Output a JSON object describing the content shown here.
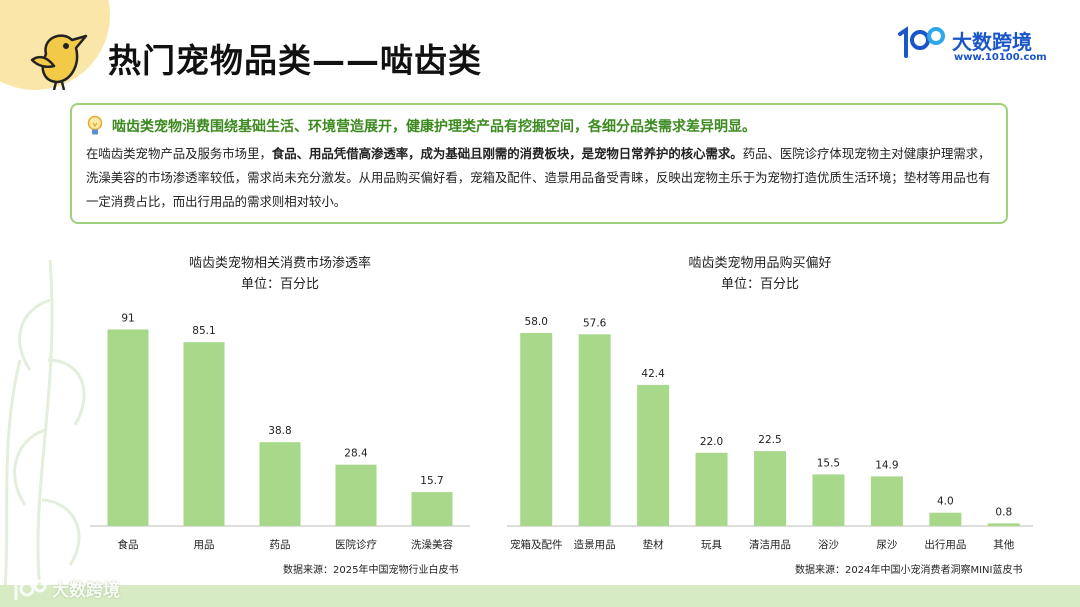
{
  "header": {
    "title": "热门宠物品类——啮齿类",
    "logo_name": "大数跨境",
    "logo_url": "www.10100.com"
  },
  "summary": {
    "headline": "啮齿类宠物消费围绕基础生活、环境营造展开，健康护理类产品有挖掘空间，各细分品类需求差异明显。",
    "p1": "在啮齿类宠物产品及服务市场里，",
    "p2": "食品、用品凭借高渗透率，成为基础且刚需的消费板块，是宠物日常养护的核心需求。",
    "p3": "药品、医院诊疗体现宠物主对健康护理需求，洗澡美容的市场渗透率较低，需求尚未充分激发。从用品购买偏好看，宠箱及配件、造景用品备受青睐，反映出宠物主乐于为宠物打造优质生活环境；垫材等用品也有一定消费占比，而出行用品的需求则相对较小。"
  },
  "footer": {
    "logo_name": "大数跨境"
  },
  "colors": {
    "bar": "#a8d88a",
    "accent": "#3c8a1f",
    "border": "#9fd17a",
    "logo": "#1a56c9"
  },
  "chart_data": [
    {
      "type": "bar",
      "title": "啮齿类宠物相关消费市场渗透率",
      "unit": "单位：百分比",
      "categories": [
        "食品",
        "用品",
        "药品",
        "医院诊疗",
        "洗澡美容"
      ],
      "values": [
        91,
        85.1,
        38.8,
        28.4,
        15.7
      ],
      "labels": [
        "91",
        "85.1",
        "38.8",
        "28.4",
        "15.7"
      ],
      "ylim": [
        0,
        100
      ],
      "grid": false,
      "source": "数据来源：2025年中国宠物行业白皮书"
    },
    {
      "type": "bar",
      "title": "啮齿类宠物用品购买偏好",
      "unit": "单位：百分比",
      "categories": [
        "宠箱及配件",
        "造景用品",
        "垫材",
        "玩具",
        "清洁用品",
        "浴沙",
        "尿沙",
        "出行用品",
        "其他"
      ],
      "values": [
        58.0,
        57.6,
        42.4,
        22.0,
        22.5,
        15.5,
        14.9,
        4.0,
        0.8
      ],
      "labels": [
        "58.0",
        "57.6",
        "42.4",
        "22.0",
        "22.5",
        "15.5",
        "14.9",
        "4.0",
        "0.8"
      ],
      "ylim": [
        0,
        63.7
      ],
      "grid": false,
      "source": "数据来源：2024年中国小宠消费者洞察MINI蓝皮书"
    }
  ]
}
